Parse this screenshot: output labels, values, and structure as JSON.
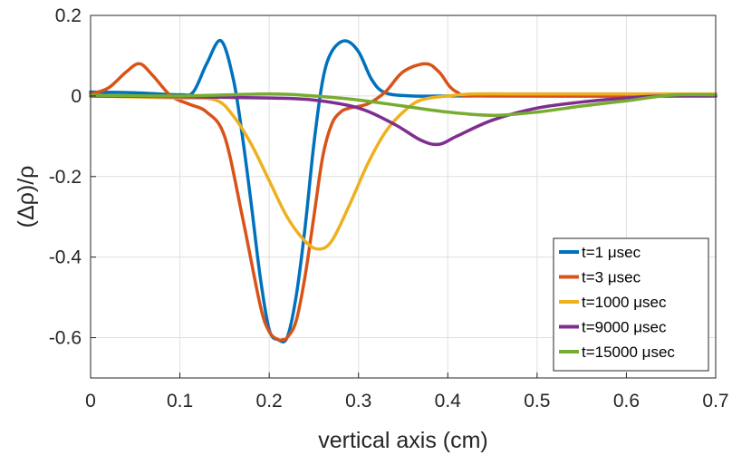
{
  "chart_data": {
    "type": "line",
    "xlabel": "vertical axis (cm)",
    "ylabel": "(Δρ)/ρ",
    "xlim": [
      0,
      0.7
    ],
    "ylim": [
      -0.7,
      0.2
    ],
    "x_ticks": [
      0,
      0.1,
      0.2,
      0.3,
      0.4,
      0.5,
      0.6,
      0.7
    ],
    "x_tick_labels": [
      "0",
      "0.1",
      "0.2",
      "0.3",
      "0.4",
      "0.5",
      "0.6",
      "0.7"
    ],
    "y_ticks": [
      0.2,
      0,
      -0.2,
      -0.4,
      -0.6
    ],
    "y_tick_labels": [
      "0.2",
      "0",
      "-0.2",
      "-0.4",
      "-0.6"
    ],
    "grid": true,
    "legend_position": "bottom-right",
    "series": [
      {
        "name": "t=1 μsec",
        "color": "#0072BD",
        "x": [
          0,
          0.05,
          0.1,
          0.115,
          0.13,
          0.146,
          0.16,
          0.17,
          0.18,
          0.19,
          0.2,
          0.21,
          0.22,
          0.23,
          0.24,
          0.25,
          0.26,
          0.27,
          0.285,
          0.3,
          0.315,
          0.33,
          0.36,
          0.4,
          0.45,
          0.7
        ],
        "y": [
          0.01,
          0.008,
          0.003,
          0.01,
          0.08,
          0.137,
          0.04,
          -0.1,
          -0.27,
          -0.45,
          -0.58,
          -0.605,
          -0.6,
          -0.5,
          -0.33,
          -0.12,
          0.04,
          0.11,
          0.137,
          0.11,
          0.04,
          0.008,
          0.0,
          0.0,
          0.0,
          0.0
        ]
      },
      {
        "name": "t=3 μsec",
        "color": "#D95319",
        "x": [
          0,
          0.02,
          0.04,
          0.055,
          0.07,
          0.09,
          0.11,
          0.13,
          0.15,
          0.17,
          0.19,
          0.2,
          0.21,
          0.215,
          0.22,
          0.23,
          0.24,
          0.25,
          0.26,
          0.27,
          0.28,
          0.29,
          0.31,
          0.33,
          0.35,
          0.375,
          0.39,
          0.41,
          0.45,
          0.7
        ],
        "y": [
          0.005,
          0.02,
          0.06,
          0.08,
          0.05,
          0.0,
          -0.02,
          -0.04,
          -0.1,
          -0.3,
          -0.52,
          -0.585,
          -0.605,
          -0.605,
          -0.6,
          -0.56,
          -0.45,
          -0.3,
          -0.15,
          -0.07,
          -0.04,
          -0.03,
          -0.02,
          0.01,
          0.06,
          0.08,
          0.06,
          0.01,
          0.0,
          0.0
        ]
      },
      {
        "name": "t=1000 μsec",
        "color": "#EDB120",
        "x": [
          0,
          0.1,
          0.14,
          0.16,
          0.18,
          0.2,
          0.22,
          0.24,
          0.255,
          0.27,
          0.29,
          0.31,
          0.33,
          0.35,
          0.37,
          0.4,
          0.43,
          0.5,
          0.6,
          0.7
        ],
        "y": [
          0.0,
          -0.005,
          -0.01,
          -0.05,
          -0.12,
          -0.21,
          -0.3,
          -0.36,
          -0.38,
          -0.36,
          -0.27,
          -0.17,
          -0.09,
          -0.04,
          -0.01,
          0.0,
          0.005,
          0.005,
          0.005,
          0.005
        ]
      },
      {
        "name": "t=9000 μsec",
        "color": "#7E2F8E",
        "x": [
          0,
          0.1,
          0.2,
          0.25,
          0.3,
          0.34,
          0.37,
          0.39,
          0.41,
          0.45,
          0.5,
          0.55,
          0.6,
          0.64,
          0.7
        ],
        "y": [
          0.0,
          -0.002,
          -0.005,
          -0.01,
          -0.03,
          -0.07,
          -0.11,
          -0.12,
          -0.1,
          -0.06,
          -0.03,
          -0.015,
          -0.005,
          0.0,
          0.0
        ]
      },
      {
        "name": "t=15000 μsec",
        "color": "#77AC30",
        "x": [
          0,
          0.1,
          0.2,
          0.25,
          0.3,
          0.35,
          0.4,
          0.45,
          0.5,
          0.55,
          0.6,
          0.65,
          0.7
        ],
        "y": [
          0.002,
          0.0,
          0.005,
          0.0,
          -0.01,
          -0.025,
          -0.04,
          -0.048,
          -0.04,
          -0.025,
          -0.012,
          0.002,
          0.003
        ]
      }
    ]
  }
}
